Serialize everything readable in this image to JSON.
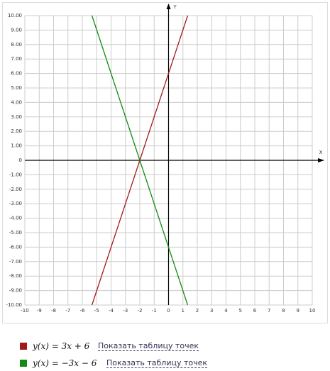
{
  "chart_data": {
    "type": "line",
    "x_label": "X",
    "y_label": "Y",
    "x": [
      -5.33,
      1.33
    ],
    "series": [
      {
        "name": "y(x) = 3x + 6",
        "color": "#a11a1a",
        "values": [
          -10,
          10
        ]
      },
      {
        "name": "y(x) = −3x − 6",
        "color": "#138a13",
        "values": [
          10,
          -10
        ]
      }
    ],
    "xlim": [
      -10,
      10
    ],
    "ylim": [
      -10,
      10
    ],
    "xticks": [
      -10,
      -9,
      -8,
      -7,
      -6,
      -5,
      -4,
      -3,
      -2,
      -1,
      0,
      1,
      2,
      3,
      4,
      5,
      6,
      7,
      8,
      9,
      10
    ],
    "yticks": [
      {
        "value": 10,
        "label": "10.00"
      },
      {
        "value": 9,
        "label": "9.00"
      },
      {
        "value": 8,
        "label": "8.00"
      },
      {
        "value": 7,
        "label": "7.00"
      },
      {
        "value": 6,
        "label": "6.00"
      },
      {
        "value": 5,
        "label": "5.00"
      },
      {
        "value": 4,
        "label": "4.00"
      },
      {
        "value": 3,
        "label": "3.00"
      },
      {
        "value": 2,
        "label": "2.00"
      },
      {
        "value": 1,
        "label": "1.00"
      },
      0,
      {
        "value": -1,
        "label": "-1.00"
      },
      {
        "value": -2,
        "label": "-2.00"
      },
      {
        "value": -3,
        "label": "-3.00"
      },
      {
        "value": -4,
        "label": "-4.00"
      },
      {
        "value": -5,
        "label": "-5.00"
      },
      {
        "value": -6,
        "label": "-6.00"
      },
      {
        "value": -7,
        "label": "-7.00"
      },
      {
        "value": -8,
        "label": "-8.00"
      },
      {
        "value": -9,
        "label": "-9.00"
      },
      {
        "value": -10,
        "label": "-10.00"
      }
    ],
    "grid": true,
    "table_links": [
      "Показать таблицу точек",
      "Показать таблицу точек"
    ]
  }
}
